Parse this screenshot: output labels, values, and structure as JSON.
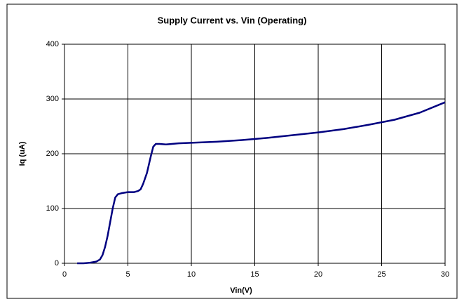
{
  "chart_data": {
    "type": "line",
    "title": "Supply Current vs. Vin (Operating)",
    "xlabel": "Vin(V)",
    "ylabel": "Iq (uA)",
    "x": [
      1,
      1.5,
      2,
      2.5,
      2.8,
      3,
      3.2,
      3.4,
      3.6,
      3.8,
      4,
      4.2,
      4.5,
      5,
      5.5,
      5.8,
      6,
      6.2,
      6.5,
      6.8,
      7,
      7.2,
      7.5,
      8,
      9,
      10,
      12,
      14,
      16,
      18,
      20,
      22,
      24,
      26,
      28,
      30
    ],
    "series": [
      {
        "name": "Iq",
        "color": "#000080",
        "values": [
          0,
          0,
          1,
          3,
          7,
          15,
          30,
          50,
          75,
          100,
          120,
          126,
          128,
          130,
          130,
          132,
          135,
          145,
          165,
          195,
          213,
          218,
          218,
          217,
          219,
          220,
          222,
          225,
          229,
          234,
          239,
          245,
          253,
          262,
          275,
          294
        ]
      }
    ],
    "xlim": [
      0,
      30
    ],
    "xticks": [
      0,
      5,
      10,
      15,
      20,
      25,
      30
    ],
    "ylim": [
      0,
      400
    ],
    "yticks": [
      0,
      100,
      200,
      300,
      400
    ],
    "grid": true
  }
}
